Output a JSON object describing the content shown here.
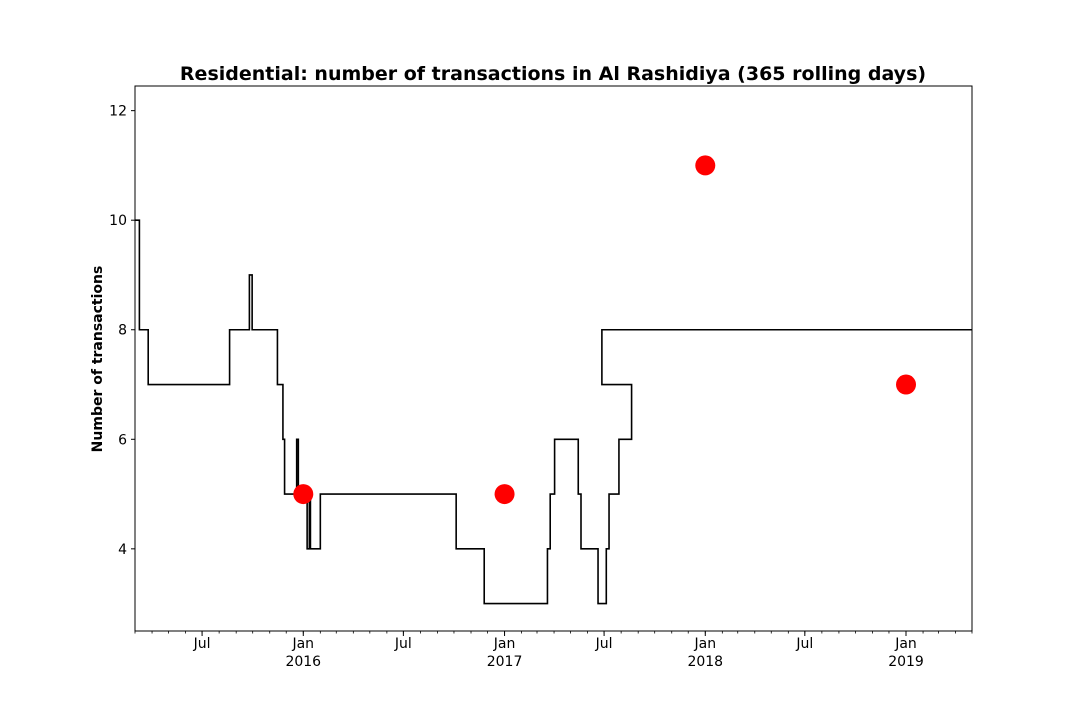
{
  "chart_data": {
    "type": "line",
    "title": "Residential: number of transactions in Al Rashidiya (365 rolling days)",
    "xlabel": "",
    "ylabel": "Number of transactions",
    "xlim": [
      "2015-03-01",
      "2019-05-01"
    ],
    "ylim": [
      2.5,
      12.45
    ],
    "grid": false,
    "y_ticks": [
      4,
      6,
      8,
      10,
      12
    ],
    "x_ticks": [
      {
        "date": "2015-07-01",
        "label": "Jul",
        "year": ""
      },
      {
        "date": "2016-01-01",
        "label": "Jan",
        "year": "2016"
      },
      {
        "date": "2016-07-01",
        "label": "Jul",
        "year": ""
      },
      {
        "date": "2017-01-01",
        "label": "Jan",
        "year": "2017"
      },
      {
        "date": "2017-07-01",
        "label": "Jul",
        "year": ""
      },
      {
        "date": "2018-01-01",
        "label": "Jan",
        "year": "2018"
      },
      {
        "date": "2018-07-01",
        "label": "Jul",
        "year": ""
      },
      {
        "date": "2019-01-01",
        "label": "Jan",
        "year": "2019"
      }
    ],
    "series": [
      {
        "name": "",
        "color": "#000000",
        "step": true,
        "points": [
          [
            "2015-03-01",
            10
          ],
          [
            "2015-03-09",
            8
          ],
          [
            "2015-03-25",
            7
          ],
          [
            "2015-08-20",
            8
          ],
          [
            "2015-09-25",
            9
          ],
          [
            "2015-09-30",
            8
          ],
          [
            "2015-11-15",
            7
          ],
          [
            "2015-11-25",
            6
          ],
          [
            "2015-11-28",
            5
          ],
          [
            "2015-12-20",
            6
          ],
          [
            "2015-12-23",
            5
          ],
          [
            "2016-01-08",
            4
          ],
          [
            "2016-01-12",
            5
          ],
          [
            "2016-01-14",
            4
          ],
          [
            "2016-02-01",
            5
          ],
          [
            "2016-10-05",
            4
          ],
          [
            "2016-11-25",
            3
          ],
          [
            "2017-03-20",
            4
          ],
          [
            "2017-03-25",
            5
          ],
          [
            "2017-04-02",
            6
          ],
          [
            "2017-05-15",
            5
          ],
          [
            "2017-05-20",
            4
          ],
          [
            "2017-06-20",
            3
          ],
          [
            "2017-07-05",
            4
          ],
          [
            "2017-07-10",
            5
          ],
          [
            "2017-07-28",
            6
          ],
          [
            "2017-08-20",
            7
          ],
          [
            "2017-06-27",
            8
          ]
        ]
      }
    ],
    "markers": {
      "color": "#ff0000",
      "points": [
        [
          "2016-01-01",
          5
        ],
        [
          "2017-01-01",
          5
        ],
        [
          "2018-01-01",
          11
        ],
        [
          "2019-01-01",
          7
        ]
      ]
    }
  }
}
